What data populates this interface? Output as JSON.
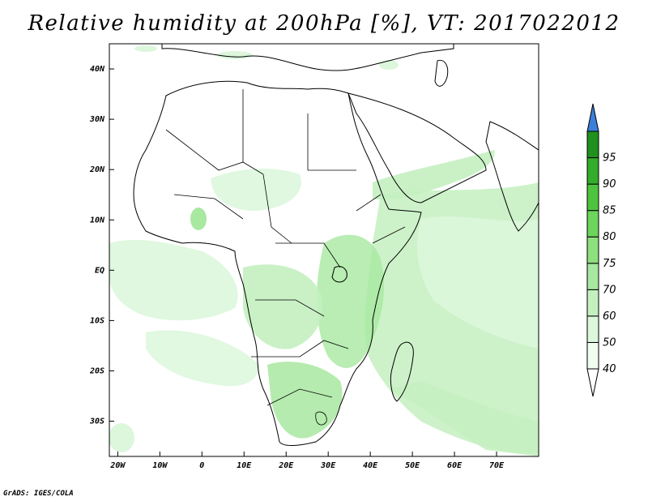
{
  "title": "Relative humidity at 200hPa [%], VT: 2017022012",
  "credit": "GrADS: IGES/COLA",
  "map": {
    "lon_range": [
      -22,
      80
    ],
    "lat_range": [
      -37,
      45
    ],
    "lon_ticks": [
      {
        "value": -20,
        "label": "20W"
      },
      {
        "value": -10,
        "label": "10W"
      },
      {
        "value": 0,
        "label": "0"
      },
      {
        "value": 10,
        "label": "10E"
      },
      {
        "value": 20,
        "label": "20E"
      },
      {
        "value": 30,
        "label": "30E"
      },
      {
        "value": 40,
        "label": "40E"
      },
      {
        "value": 50,
        "label": "50E"
      },
      {
        "value": 60,
        "label": "60E"
      },
      {
        "value": 70,
        "label": "70E"
      }
    ],
    "lat_ticks": [
      {
        "value": 40,
        "label": "40N"
      },
      {
        "value": 30,
        "label": "30N"
      },
      {
        "value": 20,
        "label": "20N"
      },
      {
        "value": 10,
        "label": "10N"
      },
      {
        "value": 0,
        "label": "EQ"
      },
      {
        "value": -10,
        "label": "10S"
      },
      {
        "value": -20,
        "label": "20S"
      },
      {
        "value": -30,
        "label": "30S"
      }
    ]
  },
  "colorbar": {
    "levels": [
      {
        "label": "40",
        "color": "#f0fcf0"
      },
      {
        "label": "50",
        "color": "#dcf7dc"
      },
      {
        "label": "60",
        "color": "#c4f0c0"
      },
      {
        "label": "70",
        "color": "#a8e8a0"
      },
      {
        "label": "75",
        "color": "#8ee07e"
      },
      {
        "label": "80",
        "color": "#6dd45c"
      },
      {
        "label": "85",
        "color": "#4ec43e"
      },
      {
        "label": "90",
        "color": "#34ac2c"
      },
      {
        "label": "95",
        "color": "#20901e"
      }
    ],
    "under_color": "#ffffff",
    "over_color": "#3a7fd8"
  }
}
